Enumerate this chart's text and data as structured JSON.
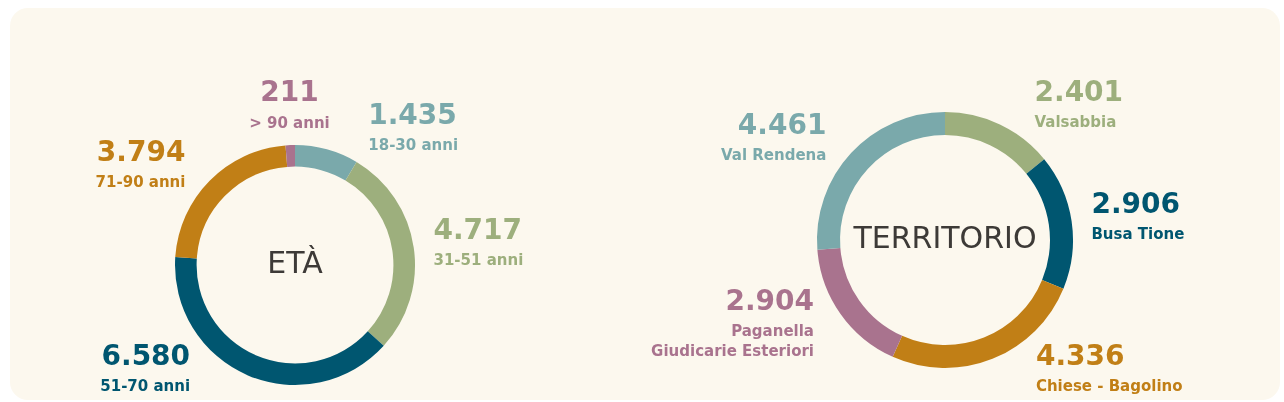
{
  "chart_data": [
    {
      "type": "donut",
      "title": "ETÀ",
      "categories": [
        "18-30 anni",
        "31-51 anni",
        "51-70 anni",
        "71-90 anni",
        "> 90 anni"
      ],
      "values": [
        1435,
        4717,
        6580,
        3794,
        211
      ],
      "value_labels": [
        "1.435",
        "4.717",
        "6.580",
        "3.794",
        "211"
      ],
      "colors": [
        "#7aa9ab",
        "#9daf7d",
        "#005670",
        "#c17f16",
        "#a9738e"
      ]
    },
    {
      "type": "donut",
      "title": "TERRITORIO",
      "categories": [
        "Valsabbia",
        "Busa Tione",
        "Chiese - Bagolino",
        "Paganella\nGiudicarie Esteriori",
        "Val Rendena"
      ],
      "values": [
        2401,
        2906,
        4336,
        2904,
        4461
      ],
      "value_labels": [
        "2.401",
        "2.906",
        "4.336",
        "2.904",
        "4.461"
      ],
      "colors": [
        "#9daf7d",
        "#005670",
        "#c17f16",
        "#a9738e",
        "#7aa9ab"
      ]
    }
  ]
}
